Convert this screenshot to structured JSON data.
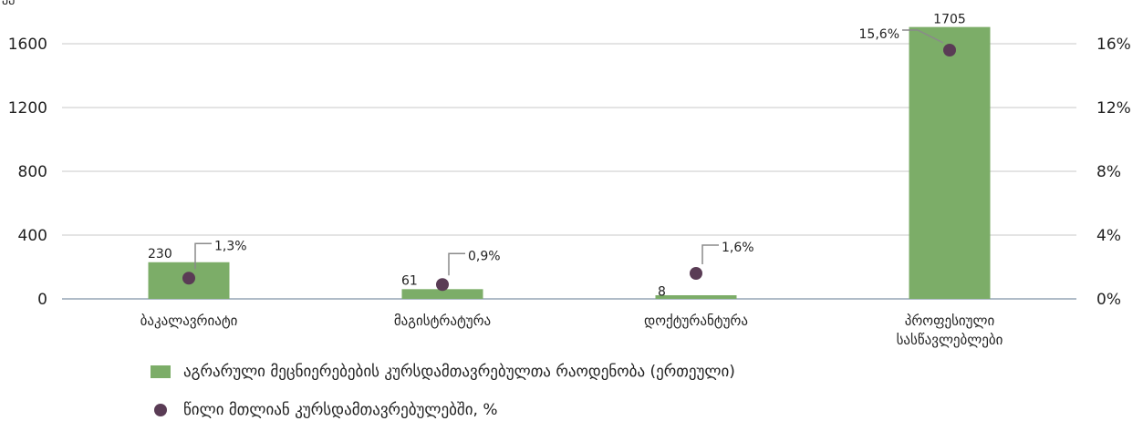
{
  "chart_data": {
    "type": "bar",
    "categories": [
      "ბაკალავრიატი",
      "მაგისტრატურა",
      "დოქტურანტურა",
      [
        "პროფესიული",
        "სასწავლებლები"
      ]
    ],
    "series": [
      {
        "name": "აგრარული მეცნიერებების კურსდამთავრებულთა რაოდენობა (ერთეული)",
        "kind": "bar",
        "axis": "left",
        "values": [
          230,
          61,
          8,
          1705
        ],
        "labels": [
          "230",
          "61",
          "8",
          "1705"
        ],
        "color": "#7cad68"
      },
      {
        "name": "წილი მთლიან კურსდამთავრებულებში, %",
        "kind": "scatter",
        "axis": "right",
        "values": [
          1.3,
          0.9,
          1.6,
          15.6
        ],
        "labels": [
          "1,3%",
          "0,9%",
          "1,6%",
          "15,6%"
        ],
        "color": "#5a3c55"
      }
    ],
    "ylim": [
      0,
      1800
    ],
    "yticks": [
      0,
      400,
      800,
      1200,
      1600
    ],
    "ytick_labels": [
      "0",
      "400",
      "800",
      "1200",
      "1600"
    ],
    "y2lim": [
      0,
      18
    ],
    "y2ticks": [
      0,
      4,
      8,
      12,
      16
    ],
    "y2tick_labels": [
      "0%",
      "4%",
      "8%",
      "12%",
      "16%"
    ],
    "grid": true,
    "legend_position": "bottom-left"
  },
  "ylabel_fragment": "ეუ"
}
